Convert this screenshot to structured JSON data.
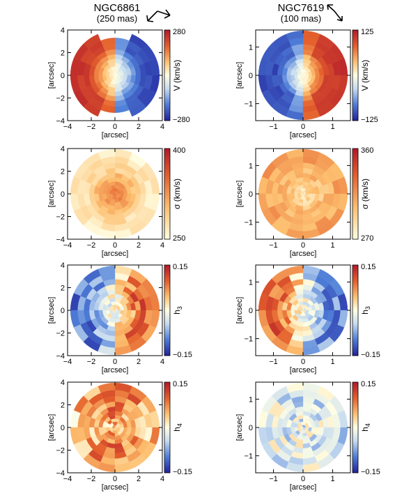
{
  "figure": {
    "columns": [
      {
        "galaxy": "NGC6861",
        "resolution": "(250 mas)"
      },
      {
        "galaxy": "NGC7619",
        "resolution": "(100 mas)"
      }
    ]
  },
  "chart_data": [
    {
      "type": "heatmap",
      "galaxy": "NGC6861",
      "quantity": "V",
      "colorbar_label": "V (km/s)",
      "range": [
        -280,
        280
      ],
      "colorbar_ticks": [
        "280",
        "−280"
      ],
      "xlabel": "[arcsec]",
      "ylabel": "[arcsec]",
      "xlim": [
        -4,
        4
      ],
      "ylim": [
        -4,
        4
      ],
      "xticks": [
        "−4",
        "−2",
        "0",
        "2",
        "4"
      ],
      "yticks": [
        "4",
        "2",
        "0",
        "−2",
        "−4"
      ],
      "description": "rotation: strong positive (red) on left, negative (blue) on right"
    },
    {
      "type": "heatmap",
      "galaxy": "NGC6861",
      "quantity": "sigma",
      "colorbar_label": "σ (km/s)",
      "range": [
        250,
        400
      ],
      "colorbar_ticks": [
        "400",
        "250"
      ],
      "xlabel": "[arcsec]",
      "ylabel": "[arcsec]",
      "xlim": [
        -4,
        4
      ],
      "ylim": [
        -4,
        4
      ],
      "xticks": [
        "−4",
        "−2",
        "0",
        "2",
        "4"
      ],
      "yticks": [
        "4",
        "2",
        "0",
        "−2",
        "−4"
      ],
      "description": "central peak ~380, falling to ~300 outward"
    },
    {
      "type": "heatmap",
      "galaxy": "NGC6861",
      "quantity": "h3",
      "colorbar_label": "h",
      "colorbar_sub": "3",
      "range": [
        -0.15,
        0.15
      ],
      "colorbar_ticks": [
        "0.15",
        "−0.15"
      ],
      "xlabel": "[arcsec]",
      "ylabel": "[arcsec]",
      "xlim": [
        -4,
        4
      ],
      "ylim": [
        -4,
        4
      ],
      "xticks": [
        "−4",
        "−2",
        "0",
        "2",
        "4"
      ],
      "yticks": [
        "4",
        "2",
        "0",
        "−2",
        "−4"
      ],
      "description": "anti-correlated with V: negative left, positive right"
    },
    {
      "type": "heatmap",
      "galaxy": "NGC6861",
      "quantity": "h4",
      "colorbar_label": "h",
      "colorbar_sub": "4",
      "range": [
        -0.15,
        0.15
      ],
      "colorbar_ticks": [
        "0.15",
        "−0.15"
      ],
      "xlabel": "[arcsec]",
      "ylabel": "[arcsec]",
      "xlim": [
        -4,
        4
      ],
      "ylim": [
        -4,
        4
      ],
      "xticks": [
        "−4",
        "−2",
        "0",
        "2",
        "4"
      ],
      "yticks": [
        "4",
        "2",
        "0",
        "−2",
        "−4"
      ],
      "description": "mostly positive, strongest along minor axis"
    },
    {
      "type": "heatmap",
      "galaxy": "NGC7619",
      "quantity": "V",
      "colorbar_label": "V (km/s)",
      "range": [
        -125,
        125
      ],
      "colorbar_ticks": [
        "125",
        "−125"
      ],
      "xlabel": "[arcsec]",
      "ylabel": "[arcsec]",
      "xlim": [
        -1.6,
        1.6
      ],
      "ylim": [
        -1.6,
        1.6
      ],
      "xticks": [
        "−1",
        "0",
        "1"
      ],
      "yticks": [
        "1",
        "0",
        "−1"
      ],
      "description": "rotation: negative (blue) left, positive (red) right"
    },
    {
      "type": "heatmap",
      "galaxy": "NGC7619",
      "quantity": "sigma",
      "colorbar_label": "σ (km/s)",
      "range": [
        270,
        360
      ],
      "colorbar_ticks": [
        "360",
        "270"
      ],
      "xlabel": "[arcsec]",
      "ylabel": "[arcsec]",
      "xlim": [
        -1.6,
        1.6
      ],
      "ylim": [
        -1.6,
        1.6
      ],
      "xticks": [
        "−1",
        "0",
        "1"
      ],
      "yticks": [
        "1",
        "0",
        "−1"
      ],
      "description": "high dispersion (~330-350) with slight central depression"
    },
    {
      "type": "heatmap",
      "galaxy": "NGC7619",
      "quantity": "h3",
      "colorbar_label": "h",
      "colorbar_sub": "3",
      "range": [
        -0.15,
        0.15
      ],
      "colorbar_ticks": [
        "0.15",
        "−0.15"
      ],
      "xlabel": "[arcsec]",
      "ylabel": "[arcsec]",
      "xlim": [
        -1.6,
        1.6
      ],
      "ylim": [
        -1.6,
        1.6
      ],
      "xticks": [
        "−1",
        "0",
        "1"
      ],
      "yticks": [
        "1",
        "0",
        "−1"
      ],
      "description": "anti-correlated with V: positive left, negative right"
    },
    {
      "type": "heatmap",
      "galaxy": "NGC7619",
      "quantity": "h4",
      "colorbar_label": "h",
      "colorbar_sub": "4",
      "range": [
        -0.15,
        0.15
      ],
      "colorbar_ticks": [
        "0.15",
        "−0.15"
      ],
      "xlabel": "[arcsec]",
      "ylabel": "[arcsec]",
      "xlim": [
        -1.6,
        1.6
      ],
      "ylim": [
        -1.6,
        1.6
      ],
      "xticks": [
        "−1",
        "0",
        "1"
      ],
      "yticks": [
        "1",
        "0",
        "−1"
      ],
      "description": "weak, slightly negative overall"
    }
  ]
}
